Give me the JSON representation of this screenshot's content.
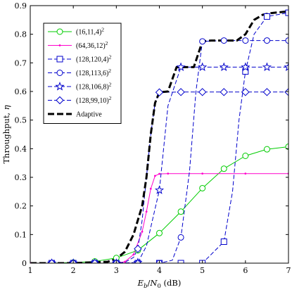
{
  "chart_data": {
    "type": "line",
    "title": "",
    "xlabel": "E_b/N_0 (dB)",
    "ylabel": "Throughput, η",
    "xlim": [
      1,
      7
    ],
    "ylim": [
      0,
      0.9
    ],
    "xticks": [
      1,
      2,
      3,
      4,
      5,
      6,
      7
    ],
    "yticks": [
      0,
      0.1,
      0.2,
      0.3,
      0.4,
      0.5,
      0.6,
      0.7,
      0.8,
      0.9
    ],
    "grid": false,
    "legend_placement": "top-left",
    "series": [
      {
        "name": "(16,11,4)²",
        "color": "#00cc00",
        "line": "solid",
        "marker": "circle",
        "x": [
          1,
          1.5,
          2,
          2.5,
          3,
          3.5,
          4,
          4.5,
          5,
          5.5,
          6,
          6.5,
          7
        ],
        "y": [
          0,
          0.0,
          0.002,
          0.006,
          0.018,
          0.045,
          0.105,
          0.18,
          0.262,
          0.33,
          0.375,
          0.398,
          0.407
        ]
      },
      {
        "name": "(64,36,12)²",
        "color": "#ff00cc",
        "line": "solid",
        "marker": "dot",
        "x": [
          1,
          2,
          3,
          3.2,
          3.4,
          3.6,
          3.7,
          3.8,
          3.9,
          4.0,
          4.2,
          5,
          6,
          7
        ],
        "y": [
          0,
          0,
          0.0,
          0.005,
          0.03,
          0.11,
          0.18,
          0.26,
          0.305,
          0.312,
          0.313,
          0.313,
          0.313,
          0.313
        ]
      },
      {
        "name": "(128,120,4)²",
        "color": "#0000cc",
        "line": "dashed",
        "marker": "square",
        "x": [
          1,
          1.5,
          2,
          2.5,
          3,
          3.5,
          4,
          4.5,
          5,
          5.5,
          5.7,
          5.85,
          6,
          6.2,
          6.5,
          7
        ],
        "y": [
          0,
          0,
          0,
          0,
          0,
          0,
          0,
          0,
          0,
          0.075,
          0.25,
          0.5,
          0.67,
          0.8,
          0.862,
          0.875
        ]
      },
      {
        "name": "(128,113,6)²",
        "color": "#0000cc",
        "line": "dashed",
        "marker": "circle",
        "x": [
          1,
          1.5,
          2,
          2.5,
          3,
          3.5,
          4,
          4.3,
          4.5,
          4.7,
          4.85,
          5,
          5.5,
          6,
          6.5,
          7
        ],
        "y": [
          0,
          0,
          0,
          0,
          0,
          0,
          0,
          0.01,
          0.09,
          0.32,
          0.6,
          0.775,
          0.778,
          0.778,
          0.778,
          0.778
        ]
      },
      {
        "name": "(128,106,8)²",
        "color": "#0000cc",
        "line": "dashed",
        "marker": "star",
        "x": [
          1,
          1.5,
          2,
          2.5,
          3,
          3.5,
          3.7,
          4,
          4.2,
          4.5,
          5,
          5.5,
          6,
          6.5,
          7
        ],
        "y": [
          0,
          0,
          0,
          0,
          0,
          0.002,
          0.06,
          0.255,
          0.55,
          0.685,
          0.685,
          0.685,
          0.685,
          0.685,
          0.685
        ]
      },
      {
        "name": "(128,99,10)²",
        "color": "#0000cc",
        "line": "dashed",
        "marker": "diamond",
        "x": [
          1,
          1.5,
          2,
          2.5,
          3,
          3.2,
          3.4,
          3.5,
          3.6,
          3.7,
          3.8,
          3.9,
          4,
          4.5,
          5,
          5.5,
          6,
          6.5,
          7
        ],
        "y": [
          0,
          0,
          0,
          0,
          0,
          0.003,
          0.02,
          0.05,
          0.15,
          0.3,
          0.45,
          0.56,
          0.597,
          0.598,
          0.598,
          0.598,
          0.598,
          0.598,
          0.598
        ]
      },
      {
        "name": "Adaptive",
        "color": "#000000",
        "line": "thick-dashed",
        "marker": "none",
        "x": [
          1,
          2,
          2.8,
          3.0,
          3.2,
          3.4,
          3.6,
          3.7,
          3.8,
          3.9,
          4.0,
          4.2,
          4.4,
          4.6,
          4.8,
          5.0,
          5.2,
          5.5,
          5.8,
          6.0,
          6.2,
          6.4,
          6.6,
          6.8,
          7
        ],
        "y": [
          0,
          0,
          0.005,
          0.015,
          0.04,
          0.1,
          0.2,
          0.3,
          0.45,
          0.56,
          0.597,
          0.6,
          0.685,
          0.685,
          0.685,
          0.775,
          0.778,
          0.778,
          0.778,
          0.8,
          0.85,
          0.868,
          0.874,
          0.877,
          0.88
        ]
      }
    ]
  }
}
